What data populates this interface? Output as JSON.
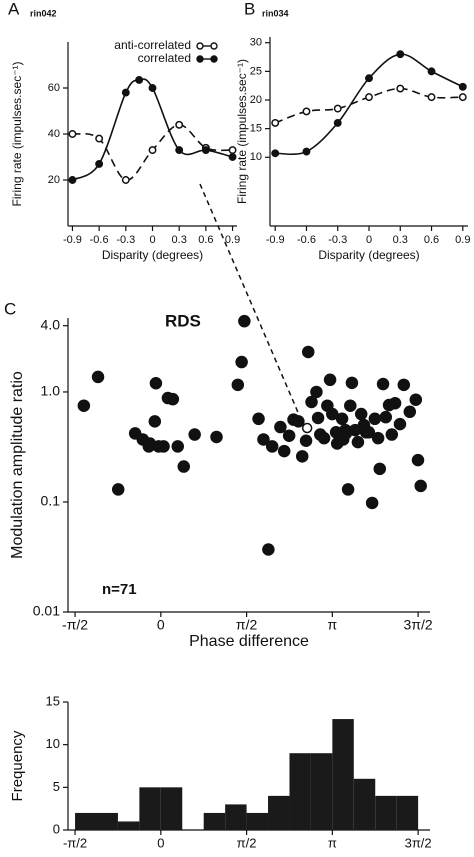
{
  "chart_data": [
    {
      "type": "line",
      "panel_label": "A",
      "cell_label": "rin042",
      "x_label": "Disparity (degrees)",
      "y_label": "Firing rate (impulses.sec⁻¹)",
      "xlim": [
        -0.95,
        0.95
      ],
      "xticks": [
        -0.9,
        -0.6,
        -0.3,
        0,
        0.3,
        0.6,
        0.9
      ],
      "ylim": [
        0,
        80
      ],
      "yticks": [
        20,
        40,
        60
      ],
      "legend": "upper right",
      "series": [
        {
          "name": "anti-correlated",
          "color": "#111111",
          "marker": "open",
          "linestyle": "dashed",
          "x": [
            -0.9,
            -0.6,
            -0.3,
            0,
            0.3,
            0.6,
            0.9
          ],
          "values": [
            40,
            38,
            20,
            33,
            44,
            34,
            33
          ]
        },
        {
          "name": "correlated",
          "color": "#111111",
          "marker": "filled",
          "linestyle": "solid",
          "x": [
            -0.9,
            -0.6,
            -0.3,
            -0.15,
            0,
            0.3,
            0.6,
            0.9
          ],
          "values": [
            20,
            27,
            58,
            63.5,
            60,
            33,
            33,
            30
          ]
        }
      ]
    },
    {
      "type": "line",
      "panel_label": "B",
      "cell_label": "rin034",
      "x_label": "Disparity (degrees)",
      "y_label": "Firing rate (impulses.sec⁻¹)",
      "xlim": [
        -0.95,
        0.95
      ],
      "xticks": [
        -0.9,
        -0.6,
        -0.3,
        0,
        0.3,
        0.6,
        0.9
      ],
      "ylim": [
        -2,
        31
      ],
      "yticks": [
        10,
        15,
        20,
        25,
        30
      ],
      "series": [
        {
          "color": "#111111",
          "marker": "open",
          "linestyle": "dashed",
          "x": [
            -0.9,
            -0.6,
            -0.3,
            0,
            0.3,
            0.6,
            0.9
          ],
          "values": [
            16,
            18,
            18.5,
            20.5,
            22,
            20.5,
            20.5
          ]
        },
        {
          "color": "#111111",
          "marker": "filled",
          "linestyle": "solid",
          "x": [
            -0.9,
            -0.6,
            -0.3,
            0,
            0.3,
            0.6,
            0.9
          ],
          "values": [
            10.7,
            11,
            16,
            23.8,
            28,
            25,
            22.3
          ]
        }
      ]
    },
    {
      "type": "scatter",
      "panel_label": "C",
      "annotations": [
        "RDS",
        "n=71"
      ],
      "x_label": "Phase difference",
      "y_label": "Modulation amplitude ratio",
      "log_y": true,
      "xlim": [
        -1.7,
        4.93
      ],
      "xticks": [
        {
          "value": -1.5708,
          "label": "-π/2"
        },
        0,
        {
          "value": 1.5708,
          "label": "π/2"
        },
        {
          "value": 3.1416,
          "label": "π"
        },
        {
          "value": 4.7124,
          "label": "3π/2"
        }
      ],
      "ylim": [
        0.01,
        4.7
      ],
      "yticks": [
        0.01,
        0.1,
        {
          "value": 1,
          "label": "1.0"
        },
        {
          "value": 4,
          "label": "4.0"
        }
      ],
      "series": [
        {
          "color": "#111111",
          "marker": "filled",
          "x": [
            -1.41,
            -1.15,
            -0.78,
            -0.47,
            -0.33,
            -0.2,
            -0.09,
            -0.11,
            -0.22,
            -0.04,
            0.05,
            0.13,
            0.22,
            0.31,
            0.42,
            0.62,
            1.02,
            1.41,
            1.48,
            1.53,
            1.79,
            1.88,
            1.97,
            2.04,
            2.19,
            2.26,
            2.35,
            2.43,
            2.52,
            2.59,
            2.66,
            2.7,
            2.76,
            2.85,
            2.88,
            2.92,
            2.99,
            3.05,
            3.1,
            3.14,
            3.21,
            3.23,
            3.28,
            3.32,
            3.34,
            3.38,
            3.39,
            3.43,
            3.47,
            3.5,
            3.56,
            3.61,
            3.67,
            3.72,
            3.76,
            3.81,
            3.87,
            3.92,
            3.98,
            4.01,
            4.07,
            4.12,
            4.18,
            4.23,
            4.29,
            4.38,
            4.45,
            4.56,
            4.71,
            4.76,
            4.67
          ],
          "values": [
            0.75,
            1.37,
            0.13,
            0.42,
            0.37,
            0.34,
            1.2,
            0.54,
            0.32,
            0.32,
            0.32,
            0.88,
            0.86,
            0.32,
            0.21,
            0.41,
            0.39,
            1.16,
            1.87,
            4.4,
            0.57,
            0.37,
            0.037,
            0.32,
            0.48,
            0.29,
            0.4,
            0.56,
            0.54,
            0.26,
            0.36,
            2.31,
            0.81,
            1.0,
            0.58,
            0.41,
            0.38,
            0.75,
            1.29,
            0.63,
            0.43,
            0.34,
            0.37,
            0.57,
            0.37,
            0.45,
            0.42,
            0.13,
            0.75,
            1.21,
            0.45,
            0.35,
            0.63,
            0.5,
            0.43,
            0.43,
            0.098,
            0.57,
            0.38,
            0.2,
            1.18,
            0.59,
            0.76,
            0.41,
            0.79,
            0.51,
            1.16,
            0.66,
            0.24,
            0.14,
            0.85
          ]
        },
        {
          "color": "#111111",
          "marker": "open",
          "x": [
            2.68
          ],
          "values": [
            0.47
          ]
        }
      ]
    },
    {
      "type": "histogram",
      "y_label": "Frequency",
      "xlim": [
        -1.7,
        4.93
      ],
      "xticks": [
        {
          "value": -1.5708,
          "label": "-π/2"
        },
        0,
        {
          "value": 1.5708,
          "label": "π/2"
        },
        {
          "value": 3.1416,
          "label": "π"
        },
        {
          "value": 4.7124,
          "label": "3π/2"
        }
      ],
      "ylim": [
        0,
        15
      ],
      "yticks": [
        0,
        5,
        10,
        15
      ],
      "color": "#1a1a1a",
      "bins": [
        -1.5708,
        -1.1781,
        -0.7854,
        -0.3927,
        0,
        0.3927,
        0.7854,
        1.1781,
        1.5708,
        1.9635,
        2.3562,
        2.7489,
        3.1416,
        3.5343,
        3.927,
        4.3197,
        4.7124
      ],
      "values": [
        2,
        2,
        1,
        5,
        5,
        0,
        2,
        3,
        2,
        4,
        9,
        9,
        13,
        6,
        4,
        4
      ]
    }
  ]
}
